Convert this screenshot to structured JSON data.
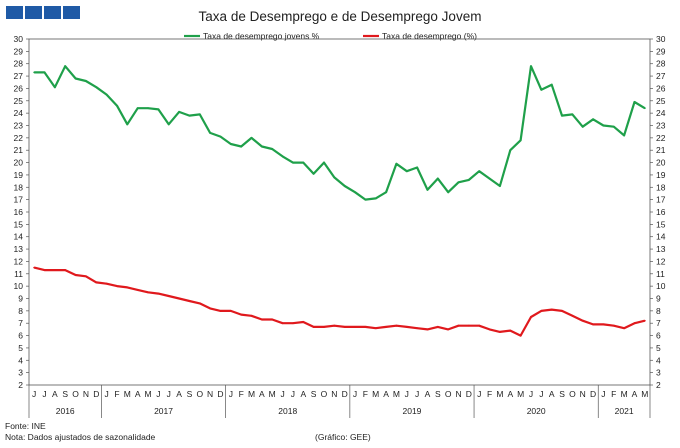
{
  "header": {
    "brand_blocks": 4,
    "brand_color": "#1f5aa6"
  },
  "footer": {
    "source": "Fonte: INE",
    "note": "Nota: Dados ajustados de sazonalidade",
    "credit": "(Gráfico: GEE)"
  },
  "chart_data": {
    "type": "line",
    "title": "Taxa de Desemprego e de Desemprego Jovem",
    "ylim": [
      2,
      30
    ],
    "y_tick_step": 1,
    "y_axis_both_sides": true,
    "grid": false,
    "legend_position": "top-center",
    "x": [
      "J",
      "J",
      "A",
      "S",
      "O",
      "N",
      "D",
      "J",
      "F",
      "M",
      "A",
      "M",
      "J",
      "J",
      "A",
      "S",
      "O",
      "N",
      "D",
      "J",
      "F",
      "M",
      "A",
      "M",
      "J",
      "J",
      "A",
      "S",
      "O",
      "N",
      "D",
      "J",
      "F",
      "M",
      "A",
      "M",
      "J",
      "J",
      "A",
      "S",
      "O",
      "N",
      "D",
      "J",
      "F",
      "M",
      "A",
      "M",
      "J",
      "J",
      "A",
      "S",
      "O",
      "N",
      "D",
      "J",
      "F",
      "M",
      "A",
      "M"
    ],
    "years": [
      {
        "label": "2016",
        "start": 0,
        "end": 6
      },
      {
        "label": "2017",
        "start": 7,
        "end": 18
      },
      {
        "label": "2018",
        "start": 19,
        "end": 30
      },
      {
        "label": "2019",
        "start": 31,
        "end": 42
      },
      {
        "label": "2020",
        "start": 43,
        "end": 54
      },
      {
        "label": "2021",
        "start": 55,
        "end": 59
      }
    ],
    "series": [
      {
        "name": "Taxa de desemprego jovens %",
        "color": "#1fa04a",
        "values": [
          27.3,
          27.3,
          26.1,
          27.8,
          26.8,
          26.6,
          26.1,
          25.5,
          24.6,
          23.1,
          24.4,
          24.4,
          24.3,
          23.1,
          24.1,
          23.8,
          23.9,
          22.4,
          22.1,
          21.5,
          21.3,
          22.0,
          21.3,
          21.1,
          20.5,
          20.0,
          20.0,
          19.1,
          20.0,
          18.8,
          18.1,
          17.6,
          17.0,
          17.1,
          17.6,
          19.9,
          19.3,
          19.6,
          17.8,
          18.7,
          17.6,
          18.4,
          18.6,
          19.3,
          18.7,
          18.1,
          21.0,
          21.8,
          27.8,
          25.9,
          26.3,
          23.8,
          23.9,
          22.9,
          23.5,
          23.0,
          22.9,
          22.2,
          24.9,
          24.4
        ]
      },
      {
        "name": "Taxa de desemprego (%)",
        "color": "#e0191d",
        "values": [
          11.5,
          11.3,
          11.3,
          11.3,
          10.9,
          10.8,
          10.3,
          10.2,
          10.0,
          9.9,
          9.7,
          9.5,
          9.4,
          9.2,
          9.0,
          8.8,
          8.6,
          8.2,
          8.0,
          8.0,
          7.7,
          7.6,
          7.3,
          7.3,
          7.0,
          7.0,
          7.1,
          6.7,
          6.7,
          6.8,
          6.7,
          6.7,
          6.7,
          6.6,
          6.7,
          6.8,
          6.7,
          6.6,
          6.5,
          6.7,
          6.5,
          6.8,
          6.8,
          6.8,
          6.5,
          6.3,
          6.4,
          6.0,
          7.5,
          8.0,
          8.1,
          8.0,
          7.6,
          7.2,
          6.9,
          6.9,
          6.8,
          6.6,
          7.0,
          7.2
        ]
      }
    ]
  }
}
